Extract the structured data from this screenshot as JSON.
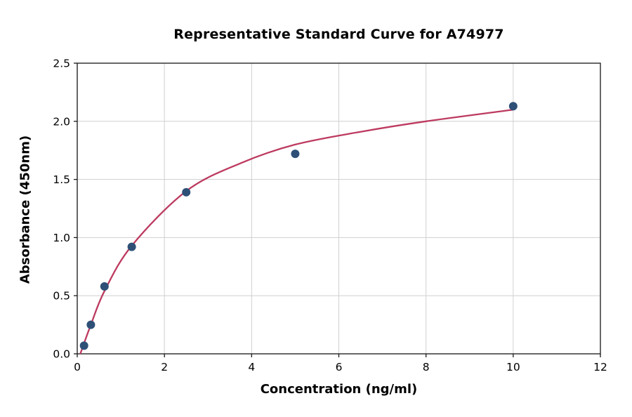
{
  "chart_data": {
    "type": "scatter",
    "title": "Representative Standard Curve for A74977",
    "xlabel": "Concentration (ng/ml)",
    "ylabel": "Absorbance (450nm)",
    "xlim": [
      0,
      12
    ],
    "ylim": [
      0,
      2.5
    ],
    "xticks": {
      "values": [
        0,
        2,
        4,
        6,
        8,
        10,
        12
      ],
      "labels": [
        "0",
        "2",
        "4",
        "6",
        "8",
        "10",
        "12"
      ]
    },
    "yticks": {
      "values": [
        0,
        0.5,
        1.0,
        1.5,
        2.0,
        2.5
      ],
      "labels": [
        "0.0",
        "0.5",
        "1.0",
        "1.5",
        "2.0",
        "2.5"
      ]
    },
    "grid": true,
    "legend_position": "none",
    "series": [
      {
        "name": "standard-points",
        "type": "scatter",
        "x": [
          0.156,
          0.3125,
          0.625,
          1.25,
          2.5,
          5,
          10
        ],
        "y": [
          0.07,
          0.25,
          0.58,
          0.92,
          1.39,
          1.72,
          2.13
        ]
      },
      {
        "name": "fit-curve",
        "type": "line",
        "x": [
          0.07,
          0.3125,
          0.625,
          1.25,
          2.5,
          3.75,
          5,
          6.5,
          8,
          10
        ],
        "y": [
          0.0,
          0.25,
          0.54,
          0.93,
          1.4,
          1.64,
          1.8,
          1.91,
          2.0,
          2.1
        ]
      }
    ],
    "colors": {
      "marker": "#2e5077",
      "curve": "#bd3a60",
      "grid": "#d0d0d0",
      "spine": "#262626",
      "tick": "#1a1a1a",
      "text": "#000000",
      "background": "#ffffff"
    }
  }
}
